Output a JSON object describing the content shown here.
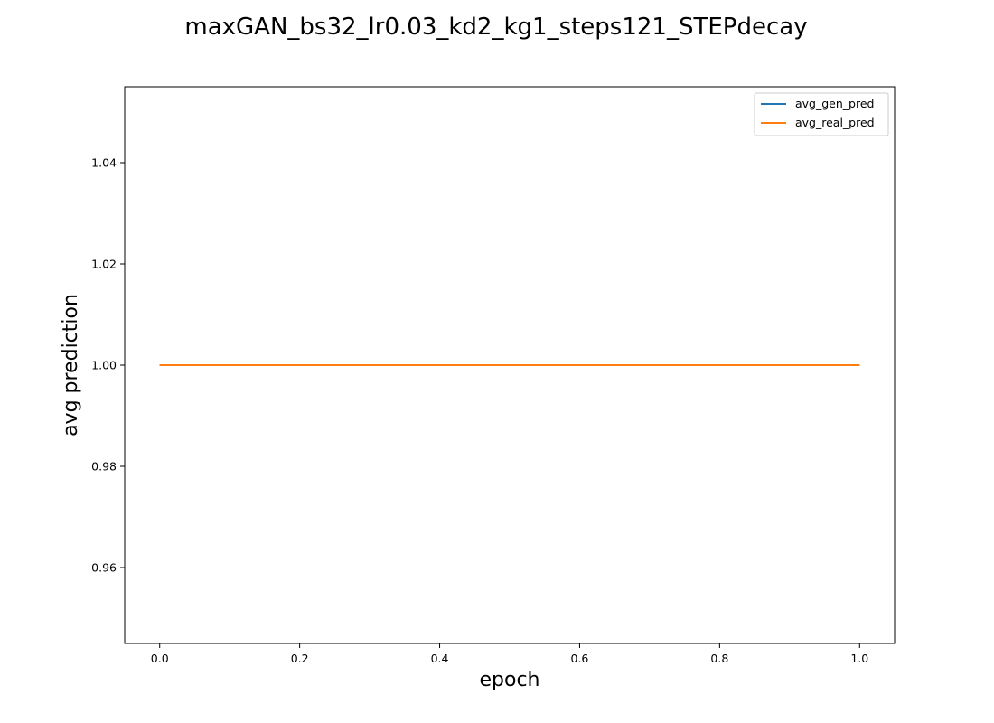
{
  "chart_data": {
    "type": "line",
    "title": "maxGAN_bs32_lr0.03_kd2_kg1_steps121_STEPdecay",
    "xlabel": "epoch",
    "ylabel": "avg prediction",
    "xlim": [
      -0.05,
      1.05
    ],
    "ylim": [
      0.945,
      1.055
    ],
    "xticks": [
      0.0,
      0.2,
      0.4,
      0.6,
      0.8,
      1.0
    ],
    "xtick_labels": [
      "0.0",
      "0.2",
      "0.4",
      "0.6",
      "0.8",
      "1.0"
    ],
    "yticks": [
      0.96,
      0.98,
      1.0,
      1.02,
      1.04
    ],
    "ytick_labels": [
      "0.96",
      "0.98",
      "1.00",
      "1.02",
      "1.04"
    ],
    "grid": false,
    "legend_position": "top-right",
    "series": [
      {
        "name": "avg_gen_pred",
        "color": "#1f77b4",
        "x": [
          0,
          1
        ],
        "y": [
          1.0,
          1.0
        ]
      },
      {
        "name": "avg_real_pred",
        "color": "#ff7f0e",
        "x": [
          0,
          1
        ],
        "y": [
          1.0,
          1.0
        ]
      }
    ]
  }
}
